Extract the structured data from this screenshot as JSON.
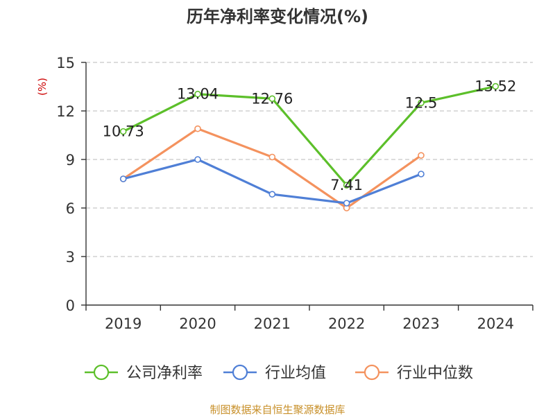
{
  "chart_data": {
    "type": "line",
    "title": "历年净利率变化情况(%)",
    "ylabel": "(%)",
    "categories": [
      "2019",
      "2020",
      "2021",
      "2022",
      "2023",
      "2024"
    ],
    "ylim": [
      0,
      15
    ],
    "yticks": [
      0,
      3,
      6,
      9,
      12,
      15
    ],
    "grid": true,
    "legend_position": "bottom",
    "series": [
      {
        "name": "公司净利率",
        "color": "#5cbf2a",
        "values": [
          10.73,
          13.04,
          12.76,
          7.41,
          12.5,
          13.52
        ],
        "data_labels": [
          "10.73",
          "13.04",
          "12.76",
          "7.41",
          "12.5",
          "13.52"
        ]
      },
      {
        "name": "行业均值",
        "color": "#4f7fd6",
        "values": [
          7.8,
          9.0,
          6.85,
          6.3,
          8.1,
          null
        ]
      },
      {
        "name": "行业中位数",
        "color": "#f4925e",
        "values": [
          7.8,
          10.9,
          9.15,
          6.0,
          9.25,
          null
        ]
      }
    ]
  },
  "source": "制图数据来自恒生聚源数据库"
}
